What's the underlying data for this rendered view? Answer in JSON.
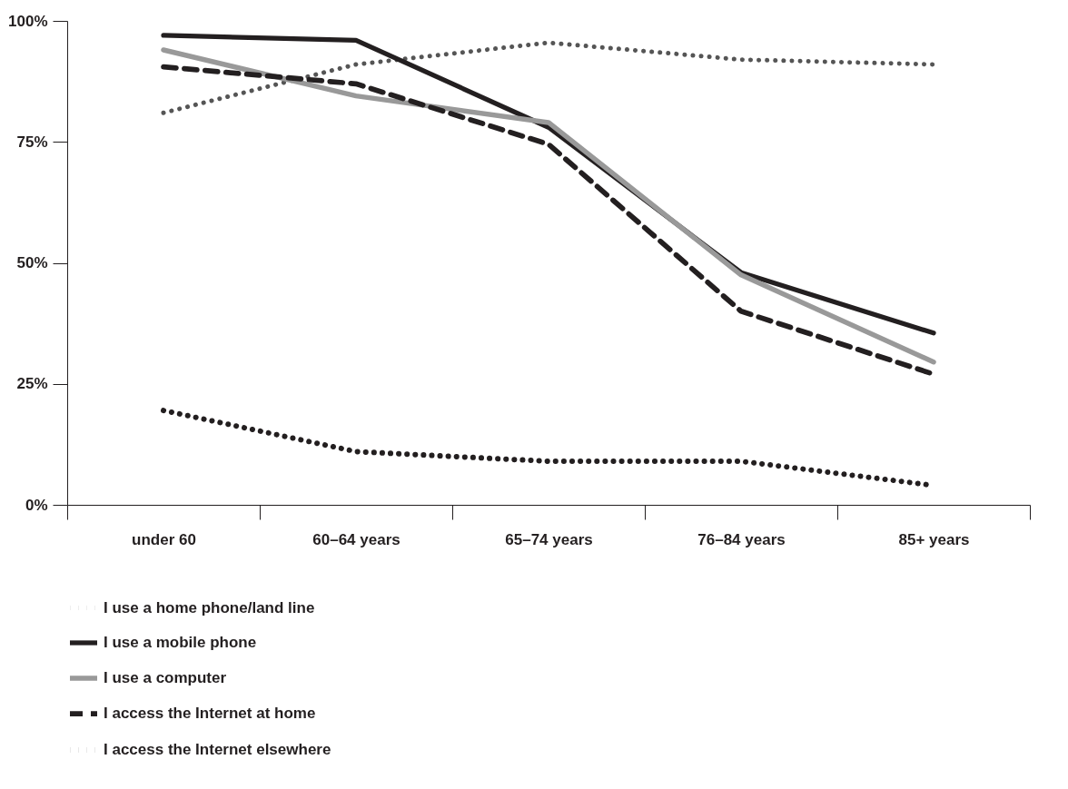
{
  "chart_data": {
    "type": "line",
    "categories": [
      "under 60",
      "60–64 years",
      "65–74 years",
      "76–84 years",
      "85+ years"
    ],
    "series": [
      {
        "name": "I use a home phone/land line",
        "color": "#555555",
        "line_style": "dotted",
        "values": [
          81,
          91,
          95.5,
          92,
          91
        ]
      },
      {
        "name": "I use a mobile phone",
        "color": "#231f20",
        "line_style": "solid",
        "values": [
          97,
          96,
          78,
          48,
          35.5
        ]
      },
      {
        "name": "I use a computer",
        "color": "#999999",
        "line_style": "solid",
        "values": [
          94,
          84.5,
          79,
          47.5,
          29.5
        ]
      },
      {
        "name": "I access the Internet at home",
        "color": "#231f20",
        "line_style": "dashed",
        "values": [
          90.5,
          87,
          74.5,
          40,
          27
        ]
      },
      {
        "name": "I access the Internet elsewhere",
        "color": "#231f20",
        "line_style": "dotted",
        "values": [
          19.5,
          11,
          9,
          9,
          4
        ]
      }
    ],
    "ylim": [
      0,
      100
    ],
    "yticks": [
      {
        "value": 0,
        "label": "0%"
      },
      {
        "value": 25,
        "label": "25%"
      },
      {
        "value": 50,
        "label": "50%"
      },
      {
        "value": 75,
        "label": "75%"
      },
      {
        "value": 100,
        "label": "100%"
      }
    ],
    "grid": false,
    "legend": "bottom left",
    "marker": "none"
  }
}
